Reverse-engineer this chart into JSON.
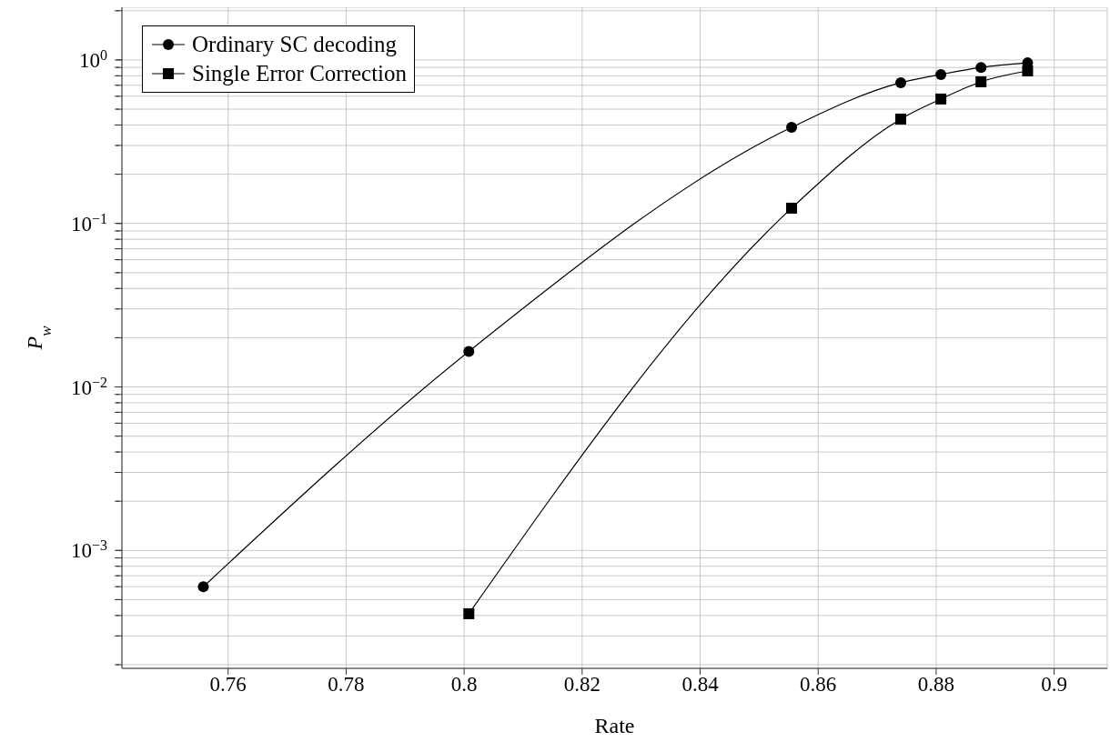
{
  "chart_data": {
    "type": "line",
    "xlabel": "Rate",
    "ylabel": "P$_{w}$",
    "log": "y",
    "grid": true,
    "legend": "top left",
    "line_style": "solid",
    "xlim": [
      0.742,
      0.909
    ],
    "xticks": [
      0.76,
      0.78,
      0.8,
      0.82,
      0.84,
      0.86,
      0.88,
      0.9
    ],
    "ylim": [
      0.00019,
      2.1
    ],
    "yticks": [
      {
        "value": 0.0002,
        "label": null
      },
      {
        "value": 0.0003,
        "label": null
      },
      {
        "value": 0.0004,
        "label": null
      },
      {
        "value": 0.0005,
        "label": null
      },
      {
        "value": 0.0006,
        "label": null
      },
      {
        "value": 0.0007,
        "label": null
      },
      {
        "value": 0.0008,
        "label": null
      },
      {
        "value": 0.0009,
        "label": null
      },
      {
        "value": 0.001,
        "label": "10$^{−3}$"
      },
      {
        "value": 0.002,
        "label": null
      },
      {
        "value": 0.003,
        "label": null
      },
      {
        "value": 0.004,
        "label": null
      },
      {
        "value": 0.005,
        "label": null
      },
      {
        "value": 0.006,
        "label": null
      },
      {
        "value": 0.007,
        "label": null
      },
      {
        "value": 0.008,
        "label": null
      },
      {
        "value": 0.009,
        "label": null
      },
      {
        "value": 0.01,
        "label": "10$^{−2}$"
      },
      {
        "value": 0.02,
        "label": null
      },
      {
        "value": 0.03,
        "label": null
      },
      {
        "value": 0.04,
        "label": null
      },
      {
        "value": 0.05,
        "label": null
      },
      {
        "value": 0.06,
        "label": null
      },
      {
        "value": 0.07,
        "label": null
      },
      {
        "value": 0.08,
        "label": null
      },
      {
        "value": 0.09,
        "label": null
      },
      {
        "value": 0.1,
        "label": "10$^{−1}$"
      },
      {
        "value": 0.2,
        "label": null
      },
      {
        "value": 0.3,
        "label": null
      },
      {
        "value": 0.4,
        "label": null
      },
      {
        "value": 0.5,
        "label": null
      },
      {
        "value": 0.6,
        "label": null
      },
      {
        "value": 0.7,
        "label": null
      },
      {
        "value": 0.8,
        "label": null
      },
      {
        "value": 0.9,
        "label": null
      },
      {
        "value": 1,
        "label": "10$^{0}$"
      },
      {
        "value": 2,
        "label": null
      }
    ],
    "series": [
      {
        "name": "Ordinary SC decoding",
        "color": "#000000",
        "marker": "circle",
        "x": [
          0.7558,
          0.8008,
          0.8555,
          0.874,
          0.8808,
          0.8876,
          0.8955
        ],
        "values": [
          0.0006,
          0.0165,
          0.387,
          0.726,
          0.815,
          0.9,
          0.96
        ]
      },
      {
        "name": "Single Error Correction",
        "color": "#000000",
        "marker": "square",
        "x": [
          0.8008,
          0.8555,
          0.874,
          0.8808,
          0.8876,
          0.8955
        ],
        "values": [
          0.00041,
          0.124,
          0.435,
          0.577,
          0.735,
          0.857
        ]
      }
    ]
  }
}
